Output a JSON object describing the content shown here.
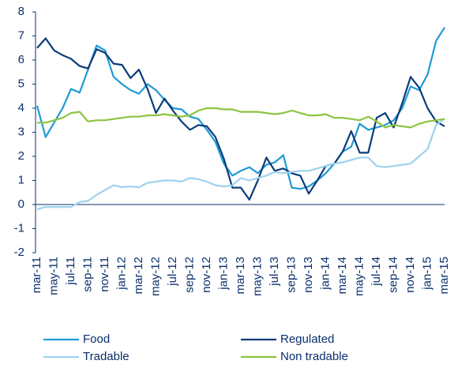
{
  "chart_data": {
    "type": "line",
    "categories": [
      "mar-11",
      null,
      "may-11",
      null,
      "jul-11",
      null,
      "sep-11",
      null,
      "nov-11",
      null,
      "jan-12",
      null,
      "mar-12",
      null,
      "may-12",
      null,
      "jul-12",
      null,
      "sep-12",
      null,
      "nov-12",
      null,
      "jan-13",
      null,
      "mar-13",
      null,
      "may-13",
      null,
      "jul-13",
      null,
      "sep-13",
      null,
      "nov-13",
      null,
      "jan-14",
      null,
      "mar-14",
      null,
      "may-14",
      null,
      "jul-14",
      null,
      "sep-14",
      null,
      "nov-14",
      null,
      "jan-15",
      null,
      "mar-15"
    ],
    "series": [
      {
        "name": "Food",
        "color": "#1f9ad6",
        "values": [
          4.1,
          2.8,
          3.4,
          4.0,
          4.8,
          4.65,
          5.6,
          6.6,
          6.4,
          5.3,
          5.0,
          4.75,
          4.6,
          5.0,
          4.75,
          4.35,
          4.0,
          3.95,
          3.65,
          3.55,
          3.1,
          2.6,
          1.7,
          1.2,
          1.4,
          1.55,
          1.3,
          1.65,
          1.75,
          2.05,
          0.7,
          0.65,
          0.75,
          1.0,
          1.3,
          1.7,
          2.2,
          2.4,
          3.35,
          3.1,
          3.2,
          3.3,
          3.5,
          4.0,
          4.9,
          4.75,
          5.4,
          6.8,
          7.35
        ]
      },
      {
        "name": "Regulated",
        "color": "#0b3c78",
        "values": [
          6.5,
          6.9,
          6.4,
          6.2,
          6.05,
          5.75,
          5.65,
          6.45,
          6.3,
          5.85,
          5.8,
          5.25,
          5.6,
          4.8,
          3.8,
          4.4,
          3.9,
          3.45,
          3.1,
          3.3,
          3.25,
          2.8,
          1.9,
          0.7,
          0.7,
          0.2,
          1.0,
          1.95,
          1.4,
          1.5,
          1.3,
          1.2,
          0.45,
          1.0,
          1.6,
          1.7,
          2.2,
          3.05,
          2.15,
          2.15,
          3.6,
          3.8,
          3.2,
          4.2,
          5.3,
          4.85,
          4.0,
          3.45,
          3.25
        ]
      },
      {
        "name": "Tradable",
        "color": "#9dd2ee",
        "values": [
          -0.2,
          -0.1,
          -0.1,
          -0.1,
          -0.1,
          0.1,
          0.15,
          0.4,
          0.6,
          0.8,
          0.72,
          0.75,
          0.72,
          0.9,
          0.95,
          1.0,
          1.0,
          0.95,
          1.1,
          1.05,
          0.95,
          0.8,
          0.75,
          0.8,
          1.1,
          1.0,
          1.1,
          1.2,
          1.35,
          1.3,
          1.35,
          1.4,
          1.4,
          1.5,
          1.6,
          1.7,
          1.75,
          1.85,
          1.95,
          1.95,
          1.6,
          1.55,
          1.6,
          1.65,
          1.7,
          2.0,
          2.3,
          3.3,
          3.55
        ]
      },
      {
        "name": "Non tradable",
        "color": "#8cc43f",
        "values": [
          3.4,
          3.4,
          3.5,
          3.6,
          3.8,
          3.85,
          3.45,
          3.5,
          3.5,
          3.55,
          3.6,
          3.65,
          3.65,
          3.7,
          3.7,
          3.75,
          3.7,
          3.65,
          3.7,
          3.9,
          4.0,
          4.0,
          3.95,
          3.95,
          3.85,
          3.85,
          3.85,
          3.8,
          3.75,
          3.8,
          3.9,
          3.8,
          3.7,
          3.7,
          3.75,
          3.6,
          3.6,
          3.55,
          3.5,
          3.65,
          3.45,
          3.2,
          3.3,
          3.25,
          3.2,
          3.35,
          3.45,
          3.5,
          3.55
        ]
      }
    ],
    "ylim": [
      -2,
      8
    ],
    "yticks": [
      -2,
      -1,
      0,
      1,
      2,
      3,
      4,
      5,
      6,
      7,
      8
    ],
    "grid": false
  }
}
